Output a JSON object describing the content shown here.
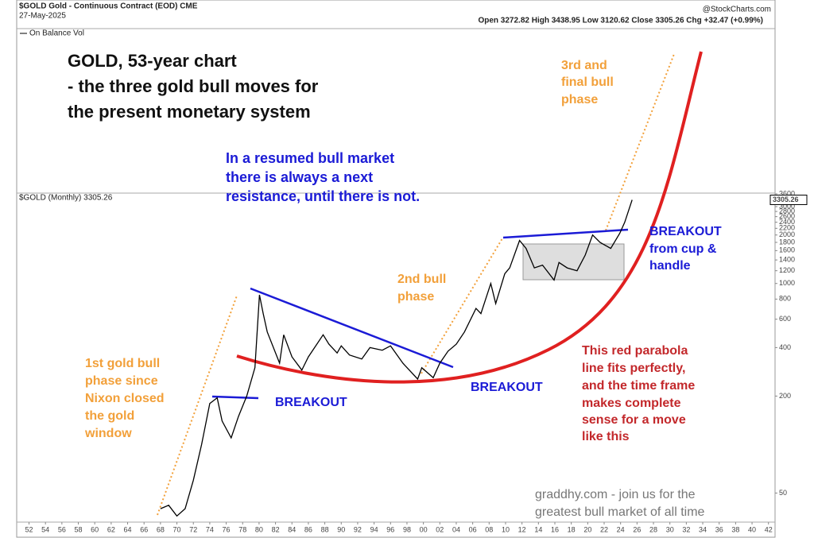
{
  "chart_data": {
    "type": "line",
    "header": {
      "symbol": "$GOLD Gold - Continuous Contract (EOD) CME",
      "date": "27-May-2025",
      "quote": "Open 3272.82 High 3438.95 Low 3120.62 Close 3305.26 Chg +32.47 (+0.99%)",
      "source": "@StockCharts.com",
      "upper_panel": "On Balance Vol",
      "lower_panel": "$GOLD (Monthly) 3305.26"
    },
    "last_value_label": "3305.26",
    "title": [
      "GOLD, 53-year chart",
      "- the three gold bull moves for",
      "the present monetary system"
    ],
    "annotations": {
      "resistance": [
        "In a resumed bull market",
        "there is always a next",
        "resistance, until there is not."
      ],
      "phase3": [
        "3rd and",
        "final bull",
        "phase"
      ],
      "phase2": [
        "2nd bull",
        "phase"
      ],
      "phase1": [
        "1st gold bull",
        "phase since",
        "Nixon closed",
        "the gold",
        "window"
      ],
      "breakout1": "BREAKOUT",
      "breakout2": "BREAKOUT",
      "breakout3": [
        "BREAKOUT",
        "from cup &",
        "handle"
      ],
      "parabola": [
        "This red parabola",
        "line fits perfectly,",
        "and the time frame",
        "makes complete",
        "sense for a move",
        "like this"
      ],
      "promo": [
        "graddhy.com - join us for the",
        "greatest bull market of all time"
      ]
    },
    "log_scale": true,
    "grid": false,
    "color": "#000000",
    "x": [
      1968.0,
      1969.0,
      1970.0,
      1971.0,
      1972.0,
      1973.0,
      1974.0,
      1974.9,
      1975.5,
      1976.6,
      1977.5,
      1978.5,
      1979.5,
      1980.05,
      1980.5,
      1981.0,
      1982.5,
      1983.0,
      1984.0,
      1985.2,
      1986.0,
      1987.8,
      1988.5,
      1989.5,
      1990.0,
      1991.0,
      1992.5,
      1993.5,
      1995.0,
      1996.0,
      1997.5,
      1999.3,
      1999.8,
      2001.2,
      2002.0,
      2003.0,
      2004.0,
      2005.0,
      2006.4,
      2007.0,
      2008.2,
      2008.8,
      2009.9,
      2010.5,
      2011.7,
      2012.5,
      2013.5,
      2014.5,
      2015.9,
      2016.5,
      2017.5,
      2018.7,
      2019.7,
      2020.6,
      2021.5,
      2022.8,
      2023.9,
      2024.5,
      2025.4
    ],
    "values": [
      40,
      42,
      36,
      40,
      60,
      100,
      180,
      195,
      140,
      110,
      150,
      200,
      300,
      850,
      650,
      500,
      320,
      480,
      350,
      290,
      350,
      480,
      420,
      370,
      410,
      360,
      340,
      400,
      385,
      410,
      320,
      255,
      300,
      260,
      320,
      380,
      420,
      500,
      700,
      650,
      1000,
      750,
      1150,
      1250,
      1850,
      1650,
      1250,
      1300,
      1050,
      1350,
      1250,
      1200,
      1500,
      2000,
      1800,
      1650,
      2050,
      2400,
      3305.26
    ],
    "xlim": [
      1950.5,
      2042.8
    ],
    "ylim": [
      33,
      3640
    ],
    "xticks": [
      {
        "value": 1952,
        "label": "52"
      },
      {
        "value": 1954,
        "label": "54"
      },
      {
        "value": 1956,
        "label": "56"
      },
      {
        "value": 1958,
        "label": "58"
      },
      {
        "value": 1960,
        "label": "60"
      },
      {
        "value": 1962,
        "label": "62"
      },
      {
        "value": 1964,
        "label": "64"
      },
      {
        "value": 1966,
        "label": "66"
      },
      {
        "value": 1968,
        "label": "68"
      },
      {
        "value": 1970,
        "label": "70"
      },
      {
        "value": 1972,
        "label": "72"
      },
      {
        "value": 1974,
        "label": "74"
      },
      {
        "value": 1976,
        "label": "76"
      },
      {
        "value": 1978,
        "label": "78"
      },
      {
        "value": 1980,
        "label": "80"
      },
      {
        "value": 1982,
        "label": "82"
      },
      {
        "value": 1984,
        "label": "84"
      },
      {
        "value": 1986,
        "label": "86"
      },
      {
        "value": 1988,
        "label": "88"
      },
      {
        "value": 1990,
        "label": "90"
      },
      {
        "value": 1992,
        "label": "92"
      },
      {
        "value": 1994,
        "label": "94"
      },
      {
        "value": 1996,
        "label": "96"
      },
      {
        "value": 1998,
        "label": "98"
      },
      {
        "value": 2000,
        "label": "00"
      },
      {
        "value": 2002,
        "label": "02"
      },
      {
        "value": 2004,
        "label": "04"
      },
      {
        "value": 2006,
        "label": "06"
      },
      {
        "value": 2008,
        "label": "08"
      },
      {
        "value": 2010,
        "label": "10"
      },
      {
        "value": 2012,
        "label": "12"
      },
      {
        "value": 2014,
        "label": "14"
      },
      {
        "value": 2016,
        "label": "16"
      },
      {
        "value": 2018,
        "label": "18"
      },
      {
        "value": 2020,
        "label": "20"
      },
      {
        "value": 2022,
        "label": "22"
      },
      {
        "value": 2024,
        "label": "24"
      },
      {
        "value": 2026,
        "label": "26"
      },
      {
        "value": 2028,
        "label": "28"
      },
      {
        "value": 2030,
        "label": "30"
      },
      {
        "value": 2032,
        "label": "32"
      },
      {
        "value": 2034,
        "label": "34"
      },
      {
        "value": 2036,
        "label": "36"
      },
      {
        "value": 2038,
        "label": "38"
      },
      {
        "value": 2040,
        "label": "40"
      },
      {
        "value": 2042,
        "label": "42"
      }
    ],
    "yticks": [
      3600,
      3200,
      3000,
      2800,
      2600,
      2400,
      2200,
      2000,
      1800,
      1600,
      1400,
      1200,
      1000,
      800,
      600,
      400,
      200,
      50
    ]
  }
}
